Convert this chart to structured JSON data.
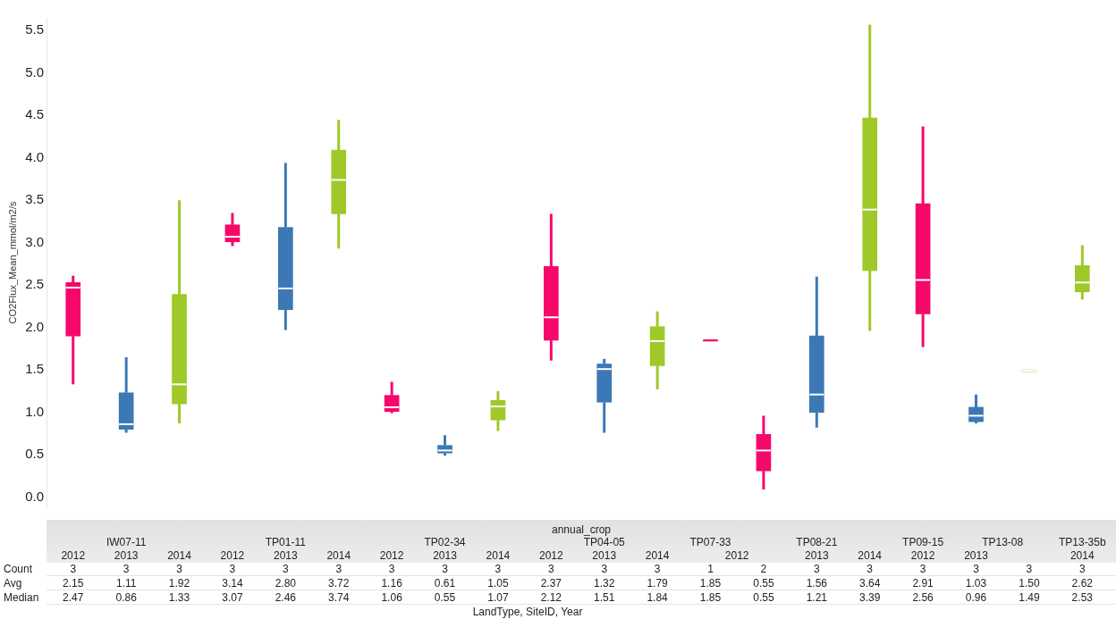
{
  "chart_data": {
    "type": "box",
    "ylabel": "CO2Flux_Mean_mmol/m2/s",
    "xlabel": "LandType, SiteID, Year",
    "categories": [
      "2012",
      "2013",
      "2014",
      "2012",
      "2013",
      "2014",
      "2012",
      "2013",
      "2014",
      "2012",
      "2013",
      "2014",
      "2012",
      null,
      "2013",
      "2014",
      "2012",
      "2013",
      null,
      "2014"
    ],
    "colors": [
      "#f5086a",
      "#3b78b5",
      "#9ec928",
      "#f5086a",
      "#3b78b5",
      "#9ec928",
      "#f5086a",
      "#3b78b5",
      "#9ec928",
      "#f5086a",
      "#3b78b5",
      "#9ec928",
      "#f5086a",
      "#f5086a",
      "#3b78b5",
      "#9ec928",
      "#f5086a",
      "#3b78b5",
      "#9ec928",
      "#9ec928"
    ],
    "boxes": [
      {
        "low": 1.33,
        "q1": 1.9,
        "median": 2.47,
        "q3": 2.53,
        "high": 2.61
      },
      {
        "low": 0.76,
        "q1": 0.8,
        "median": 0.86,
        "q3": 1.23,
        "high": 1.65
      },
      {
        "low": 0.87,
        "q1": 1.1,
        "median": 1.33,
        "q3": 2.39,
        "high": 3.5
      },
      {
        "low": 2.96,
        "q1": 3.01,
        "median": 3.07,
        "q3": 3.21,
        "high": 3.35
      },
      {
        "low": 1.97,
        "q1": 2.21,
        "median": 2.46,
        "q3": 3.18,
        "high": 3.94
      },
      {
        "low": 2.93,
        "q1": 3.34,
        "median": 3.74,
        "q3": 4.09,
        "high": 4.45
      },
      {
        "low": 0.99,
        "q1": 1.01,
        "median": 1.06,
        "q3": 1.2,
        "high": 1.36
      },
      {
        "low": 0.49,
        "q1": 0.52,
        "median": 0.55,
        "q3": 0.61,
        "high": 0.73
      },
      {
        "low": 0.78,
        "q1": 0.91,
        "median": 1.07,
        "q3": 1.14,
        "high": 1.25
      },
      {
        "low": 1.61,
        "q1": 1.85,
        "median": 2.12,
        "q3": 2.72,
        "high": 3.34
      },
      {
        "low": 0.76,
        "q1": 1.12,
        "median": 1.51,
        "q3": 1.57,
        "high": 1.63
      },
      {
        "low": 1.27,
        "q1": 1.55,
        "median": 1.84,
        "q3": 2.01,
        "high": 2.19
      },
      {
        "low": 1.85,
        "q1": 1.85,
        "median": 1.85,
        "q3": 1.85,
        "high": 1.85
      },
      {
        "low": 0.09,
        "q1": 0.31,
        "median": 0.55,
        "q3": 0.74,
        "high": 0.96
      },
      {
        "low": 0.82,
        "q1": 1.0,
        "median": 1.21,
        "q3": 1.9,
        "high": 2.6
      },
      {
        "low": 1.96,
        "q1": 2.67,
        "median": 3.39,
        "q3": 4.47,
        "high": 5.57
      },
      {
        "low": 1.77,
        "q1": 2.16,
        "median": 2.56,
        "q3": 3.46,
        "high": 4.37
      },
      {
        "low": 0.87,
        "q1": 0.89,
        "median": 0.96,
        "q3": 1.06,
        "high": 1.21
      },
      {
        "low": 1.48,
        "q1": 1.48,
        "median": 1.49,
        "q3": 1.5,
        "high": 1.5
      },
      {
        "low": 2.33,
        "q1": 2.42,
        "median": 2.53,
        "q3": 2.73,
        "high": 2.97
      }
    ],
    "ylim": [
      -0.12,
      5.65
    ],
    "yticks": [
      {
        "value": 0,
        "label": "0.0"
      },
      {
        "value": 0.5,
        "label": "0.5"
      },
      {
        "value": 1,
        "label": "1.0"
      },
      {
        "value": 1.5,
        "label": "1.5"
      },
      {
        "value": 2,
        "label": "2.0"
      },
      {
        "value": 2.5,
        "label": "2.5"
      },
      {
        "value": 3,
        "label": "3.0"
      },
      {
        "value": 3.5,
        "label": "3.5"
      },
      {
        "value": 4,
        "label": "4.0"
      },
      {
        "value": 4.5,
        "label": "4.5"
      },
      {
        "value": 5,
        "label": "5.0"
      },
      {
        "value": 5.5,
        "label": "5.5"
      }
    ],
    "annotations": [
      "annual_crop",
      "Count",
      "Avg",
      "Median",
      "IW07-11",
      "TP01-11",
      "TP02-34",
      "TP04-05",
      "TP07-33",
      "TP08-21",
      "TP09-15",
      "TP13-08",
      "TP13-35b",
      "3",
      "3",
      "3",
      "3",
      "3",
      "3",
      "3",
      "3",
      "3",
      "3",
      "3",
      "3",
      "1",
      "2",
      "3",
      "3",
      "3",
      "3",
      "3",
      "3",
      "2.15",
      "1.11",
      "1.92",
      "3.14",
      "2.80",
      "3.72",
      "1.16",
      "0.61",
      "1.05",
      "2.37",
      "1.32",
      "1.79",
      "1.85",
      "0.55",
      "1.56",
      "3.64",
      "2.91",
      "1.03",
      "1.50",
      "2.62",
      "2.47",
      "0.86",
      "1.33",
      "3.07",
      "2.46",
      "3.74",
      "1.06",
      "0.55",
      "1.07",
      "2.12",
      "1.51",
      "1.84",
      "1.85",
      "0.55",
      "1.21",
      "3.39",
      "2.56",
      "0.96",
      "1.49",
      "2.53"
    ]
  }
}
